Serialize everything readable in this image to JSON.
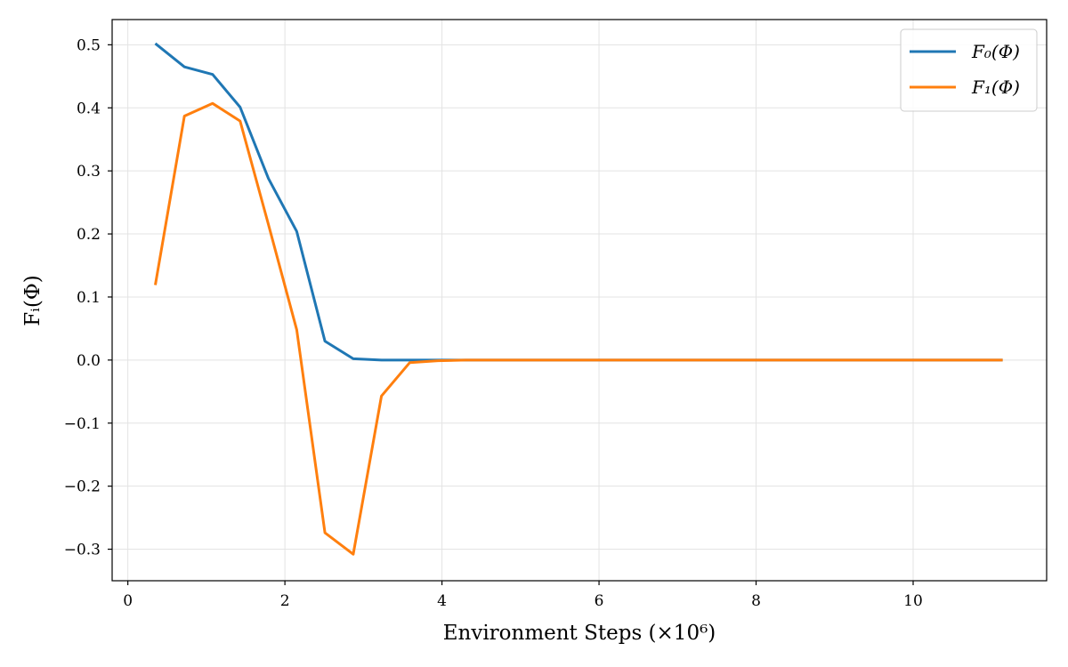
{
  "chart_data": {
    "type": "line",
    "xlabel": "Environment Steps (×10⁶)",
    "ylabel": "Fᵢ(Φ)",
    "xlim": [
      -0.2,
      11.7
    ],
    "ylim": [
      -0.35,
      0.54
    ],
    "xticks": [
      0,
      2,
      4,
      6,
      8,
      10
    ],
    "yticks": [
      -0.3,
      -0.2,
      -0.1,
      0.0,
      0.1,
      0.2,
      0.3,
      0.4,
      0.5
    ],
    "xtick_labels": [
      "0",
      "2",
      "4",
      "6",
      "8",
      "10"
    ],
    "ytick_labels": [
      "−0.3",
      "−0.2",
      "−0.1",
      "0.0",
      "0.1",
      "0.2",
      "0.3",
      "0.4",
      "0.5"
    ],
    "grid": true,
    "legend_position": "top-right",
    "x": [
      0.35,
      0.72,
      1.08,
      1.43,
      1.79,
      2.15,
      2.51,
      2.87,
      3.23,
      3.59,
      3.95,
      4.3,
      4.66,
      5.02,
      5.38,
      5.74,
      6.1,
      6.46,
      6.82,
      7.18,
      7.54,
      7.9,
      8.26,
      8.62,
      8.98,
      9.34,
      9.7,
      10.06,
      10.42,
      10.78,
      11.14
    ],
    "series": [
      {
        "name": "F₀(Φ)",
        "color": "#1f77b4",
        "values": [
          0.502,
          0.465,
          0.453,
          0.401,
          0.288,
          0.204,
          0.03,
          0.002,
          0.0,
          0.0,
          0.0,
          0.0,
          0.0,
          0.0,
          0.0,
          0.0,
          0.0,
          0.0,
          0.0,
          0.0,
          0.0,
          0.0,
          0.0,
          0.0,
          0.0,
          0.0,
          0.0,
          0.0,
          0.0,
          0.0,
          0.0
        ]
      },
      {
        "name": "F₁(Φ)",
        "color": "#ff7f0e",
        "values": [
          0.119,
          0.387,
          0.407,
          0.379,
          0.215,
          0.048,
          -0.274,
          -0.308,
          -0.057,
          -0.004,
          -0.001,
          0.0,
          0.0,
          0.0,
          0.0,
          0.0,
          0.0,
          0.0,
          0.0,
          0.0,
          0.0,
          0.0,
          0.0,
          0.0,
          0.0,
          0.0,
          0.0,
          0.0,
          0.0,
          0.0,
          0.0
        ]
      }
    ]
  }
}
